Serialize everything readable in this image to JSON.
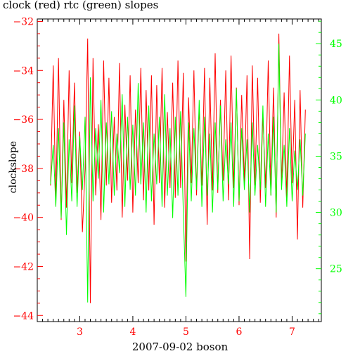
{
  "chart_data": {
    "type": "line",
    "title": "clock (red) rtc (green) slopes",
    "xlabel": "2007-09-02 boson",
    "ylabel": "clockslope",
    "xlim": [
      2.2,
      7.55
    ],
    "x_ticks": [
      3,
      4,
      5,
      6,
      7
    ],
    "x_tick_labels": [
      "3",
      "4",
      "5",
      "6",
      "7"
    ],
    "ylim_left": [
      -44.25,
      -31.9
    ],
    "y_left_ticks": [
      -44,
      -42,
      -40,
      -38,
      -36,
      -34,
      -32
    ],
    "y_left_tick_labels": [
      "−44",
      "−42",
      "−40",
      "−38",
      "−36",
      "−34",
      "−32"
    ],
    "ylim_right": [
      20.3,
      47.2
    ],
    "y_right_ticks": [
      25,
      30,
      35,
      40,
      45
    ],
    "y_right_tick_labels": [
      "25",
      "30",
      "35",
      "40",
      "45"
    ],
    "grid": false,
    "legend": "none",
    "colors": {
      "clock": "#ff0000",
      "rtc": "#00ff00",
      "left_axis": "#ff0000",
      "right_axis": "#00ff00",
      "frame": "#000000"
    },
    "series": [
      {
        "name": "clock",
        "axis": "left",
        "x": [
          2.45,
          2.5,
          2.55,
          2.6,
          2.65,
          2.7,
          2.75,
          2.8,
          2.85,
          2.9,
          2.95,
          3.0,
          3.05,
          3.1,
          3.15,
          3.2,
          3.25,
          3.3,
          3.35,
          3.4,
          3.45,
          3.5,
          3.55,
          3.6,
          3.65,
          3.7,
          3.75,
          3.8,
          3.85,
          3.9,
          3.95,
          4.0,
          4.05,
          4.1,
          4.15,
          4.2,
          4.25,
          4.3,
          4.35,
          4.4,
          4.45,
          4.5,
          4.55,
          4.6,
          4.65,
          4.7,
          4.75,
          4.8,
          4.85,
          4.9,
          4.95,
          5.0,
          5.05,
          5.1,
          5.15,
          5.2,
          5.25,
          5.3,
          5.35,
          5.4,
          5.45,
          5.5,
          5.55,
          5.6,
          5.65,
          5.7,
          5.75,
          5.8,
          5.85,
          5.9,
          5.95,
          6.0,
          6.05,
          6.1,
          6.15,
          6.2,
          6.25,
          6.3,
          6.35,
          6.4,
          6.45,
          6.5,
          6.55,
          6.6,
          6.65,
          6.7,
          6.75,
          6.8,
          6.85,
          6.9,
          6.95,
          7.0,
          7.05,
          7.1,
          7.15,
          7.2,
          7.25
        ],
        "y": [
          -38.7,
          -33.8,
          -39.5,
          -33.5,
          -40.1,
          -35.2,
          -39.6,
          -34.0,
          -38.6,
          -34.5,
          -39.0,
          -36.5,
          -40.6,
          -38.0,
          -32.7,
          -43.5,
          -33.5,
          -39.1,
          -36.2,
          -40.1,
          -33.6,
          -38.7,
          -34.3,
          -39.4,
          -35.9,
          -38.9,
          -33.7,
          -40.0,
          -35.4,
          -38.5,
          -34.2,
          -39.8,
          -35.6,
          -38.6,
          -33.9,
          -39.3,
          -34.8,
          -38.9,
          -34.2,
          -40.3,
          -34.6,
          -38.6,
          -33.9,
          -39.6,
          -35.7,
          -38.8,
          -34.5,
          -39.2,
          -33.6,
          -38.8,
          -34.1,
          -41.8,
          -35.1,
          -38.6,
          -34.0,
          -39.1,
          -35.5,
          -38.7,
          -33.9,
          -40.3,
          -34.3,
          -38.9,
          -33.3,
          -39.0,
          -35.2,
          -38.5,
          -34.0,
          -39.3,
          -33.4,
          -38.8,
          -34.7,
          -39.5,
          -35.0,
          -38.6,
          -34.2,
          -41.7,
          -33.8,
          -38.7,
          -34.3,
          -39.4,
          -35.8,
          -38.8,
          -33.6,
          -39.1,
          -34.7,
          -40.0,
          -32.5,
          -38.7,
          -34.9,
          -39.2,
          -33.4,
          -38.6,
          -35.2,
          -40.9,
          -34.8,
          -39.6,
          -35.6
        ]
      },
      {
        "name": "rtc",
        "axis": "right",
        "x": [
          2.45,
          2.5,
          2.55,
          2.6,
          2.65,
          2.7,
          2.75,
          2.8,
          2.85,
          2.9,
          2.95,
          3.0,
          3.05,
          3.1,
          3.15,
          3.2,
          3.25,
          3.3,
          3.35,
          3.4,
          3.45,
          3.5,
          3.55,
          3.6,
          3.65,
          3.7,
          3.75,
          3.8,
          3.85,
          3.9,
          3.95,
          4.0,
          4.05,
          4.1,
          4.15,
          4.2,
          4.25,
          4.3,
          4.35,
          4.4,
          4.45,
          4.5,
          4.55,
          4.6,
          4.65,
          4.7,
          4.75,
          4.8,
          4.85,
          4.9,
          4.95,
          5.0,
          5.05,
          5.1,
          5.15,
          5.2,
          5.25,
          5.3,
          5.35,
          5.4,
          5.45,
          5.5,
          5.55,
          5.6,
          5.65,
          5.7,
          5.75,
          5.8,
          5.85,
          5.9,
          5.95,
          6.0,
          6.05,
          6.1,
          6.15,
          6.2,
          6.25,
          6.3,
          6.35,
          6.4,
          6.45,
          6.5,
          6.55,
          6.6,
          6.65,
          6.7,
          6.75,
          6.8,
          6.85,
          6.9,
          6.95,
          7.0,
          7.05,
          7.1,
          7.15,
          7.2,
          7.25
        ],
        "y": [
          32.5,
          36.0,
          30.5,
          37.5,
          29.5,
          38.0,
          28.0,
          36.5,
          31.0,
          39.5,
          30.5,
          36.8,
          32.0,
          38.5,
          22.0,
          42.0,
          31.0,
          37.5,
          33.0,
          40.0,
          30.0,
          38.0,
          32.5,
          39.0,
          31.5,
          37.0,
          33.5,
          40.5,
          30.5,
          38.5,
          32.0,
          37.8,
          31.5,
          41.5,
          32.5,
          38.0,
          30.0,
          39.5,
          31.0,
          37.0,
          32.5,
          38.5,
          30.5,
          40.5,
          31.5,
          37.5,
          29.5,
          38.5,
          31.5,
          39.0,
          30.0,
          22.5,
          38.0,
          31.0,
          37.5,
          32.0,
          40.0,
          30.5,
          38.5,
          31.5,
          37.0,
          30.0,
          38.0,
          32.0,
          39.5,
          31.0,
          36.5,
          32.5,
          38.0,
          30.5,
          41.0,
          31.0,
          37.5,
          32.0,
          36.5,
          30.0,
          38.0,
          31.5,
          36.0,
          32.0,
          39.5,
          30.5,
          37.0,
          31.5,
          38.5,
          30.0,
          45.0,
          32.0,
          36.0,
          30.5,
          37.5,
          31.0,
          35.5,
          32.0,
          36.5,
          31.5,
          37.0
        ]
      }
    ]
  }
}
